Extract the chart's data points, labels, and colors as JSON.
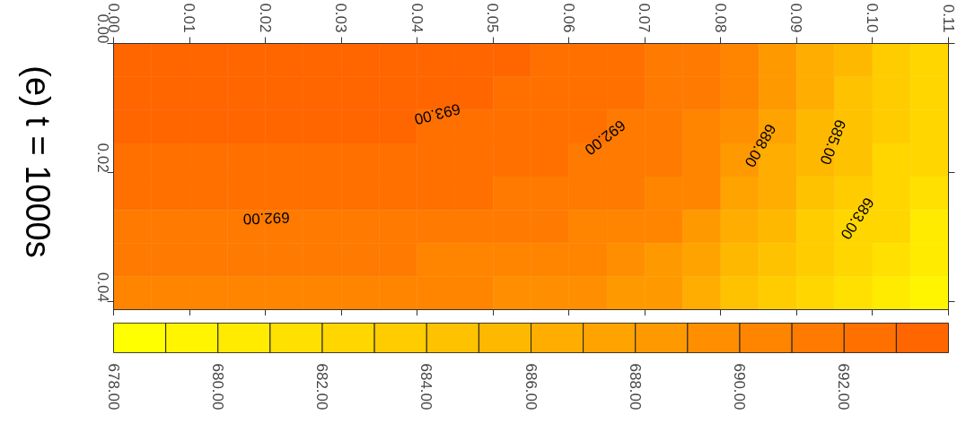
{
  "chart_data": {
    "type": "heatmap",
    "title": "(e) t = 1000s",
    "x": [
      0.0025,
      0.0075,
      0.0125,
      0.0175,
      0.0225,
      0.0275,
      0.0325,
      0.0375,
      0.0425,
      0.0475,
      0.0525,
      0.0575,
      0.0625,
      0.0675,
      0.0725,
      0.0775,
      0.0825,
      0.0875,
      0.0925,
      0.0975,
      0.1025,
      0.1075
    ],
    "y": [
      0.0026,
      0.0077,
      0.0129,
      0.018,
      0.0232,
      0.0283,
      0.0335,
      0.0386
    ],
    "cells": [
      [
        693.5,
        693.5,
        693.5,
        693.5,
        693.5,
        693.5,
        693.5,
        693.5,
        693.5,
        693.5,
        693.5,
        692.5,
        692.5,
        692.5,
        691.5,
        691.5,
        690.5,
        688.5,
        686.5,
        685.5,
        683.5,
        682.5
      ],
      [
        693.5,
        693.5,
        693.5,
        693.5,
        693.5,
        693.5,
        693.5,
        693.5,
        693.5,
        693.5,
        692.5,
        692.5,
        692.5,
        692.5,
        691.5,
        691.5,
        690.5,
        688.5,
        686.5,
        684.5,
        683.5,
        682.5
      ],
      [
        693.5,
        693.5,
        693.5,
        693.5,
        693.5,
        693.5,
        693.5,
        693.5,
        692.5,
        692.5,
        692.5,
        692.5,
        692.5,
        691.5,
        691.5,
        690.5,
        689.5,
        687.5,
        685.5,
        684.5,
        683.5,
        682.5
      ],
      [
        692.5,
        692.5,
        692.5,
        692.5,
        692.5,
        692.5,
        692.5,
        692.5,
        692.5,
        692.5,
        692.5,
        692.5,
        691.5,
        691.5,
        691.5,
        690.5,
        688.5,
        686.5,
        685.5,
        684.5,
        682.5,
        682.5
      ],
      [
        692.5,
        692.5,
        692.5,
        692.5,
        692.5,
        692.5,
        692.5,
        692.5,
        692.5,
        692.5,
        691.5,
        691.5,
        691.5,
        691.5,
        690.5,
        690.5,
        687.5,
        686.5,
        684.5,
        683.5,
        682.5,
        681.5
      ],
      [
        691.5,
        691.5,
        691.5,
        691.5,
        691.5,
        691.5,
        691.5,
        691.5,
        691.5,
        691.5,
        691.5,
        691.5,
        690.5,
        690.5,
        690.5,
        688.5,
        686.5,
        685.5,
        683.5,
        682.5,
        682.5,
        680.5
      ],
      [
        691.5,
        691.5,
        691.5,
        691.5,
        691.5,
        691.5,
        691.5,
        691.5,
        690.5,
        690.5,
        690.5,
        690.5,
        690.5,
        689.5,
        688.5,
        687.5,
        685.5,
        684.5,
        683.5,
        682.5,
        681.5,
        680.5
      ],
      [
        690.5,
        690.5,
        690.5,
        690.5,
        690.5,
        690.5,
        690.5,
        690.5,
        690.5,
        690.5,
        689.5,
        689.5,
        689.5,
        688.5,
        688.5,
        686.5,
        684.5,
        683.5,
        682.5,
        681.5,
        680.5,
        679.5
      ]
    ],
    "xlim": [
      0,
      0.11
    ],
    "xticks": [
      {
        "value": 0,
        "label": "0.00"
      },
      {
        "value": 0.01,
        "label": "0.01"
      },
      {
        "value": 0.02,
        "label": "0.02"
      },
      {
        "value": 0.03,
        "label": "0.03"
      },
      {
        "value": 0.04,
        "label": "0.04"
      },
      {
        "value": 0.05,
        "label": "0.05"
      },
      {
        "value": 0.06,
        "label": "0.06"
      },
      {
        "value": 0.07,
        "label": "0.07"
      },
      {
        "value": 0.08,
        "label": "0.08"
      },
      {
        "value": 0.09,
        "label": "0.09"
      },
      {
        "value": 0.1,
        "label": "0.10"
      },
      {
        "value": 0.11,
        "label": "0.11"
      }
    ],
    "ylim": [
      0.0412,
      0
    ],
    "yticks": [
      {
        "value": 0,
        "label": "0.00"
      },
      {
        "value": 0.02,
        "label": "0.02"
      },
      {
        "value": 0.04,
        "label": "0.04"
      }
    ],
    "clim": [
      678,
      694
    ],
    "cticks": [
      {
        "value": 678,
        "label": "678.00"
      },
      {
        "value": 680,
        "label": "680.00"
      },
      {
        "value": 682,
        "label": "682.00"
      },
      {
        "value": 684,
        "label": "684.00"
      },
      {
        "value": 686,
        "label": "686.00"
      },
      {
        "value": 688,
        "label": "688.00"
      },
      {
        "value": 690,
        "label": "690.00"
      },
      {
        "value": 692,
        "label": "692.00"
      }
    ],
    "colors": [
      "#ffff00",
      "#fff500",
      "#ffeb00",
      "#ffe000",
      "#ffd600",
      "#ffcc00",
      "#ffc200",
      "#ffb800",
      "#ffad00",
      "#ffa300",
      "#ff9900",
      "#ff8f00",
      "#ff8500",
      "#ff7a00",
      "#ff7000",
      "#ff6600"
    ],
    "annotations": [
      "693.00",
      "692.00",
      "692.00",
      "688.00",
      "685.00",
      "683.00"
    ]
  }
}
